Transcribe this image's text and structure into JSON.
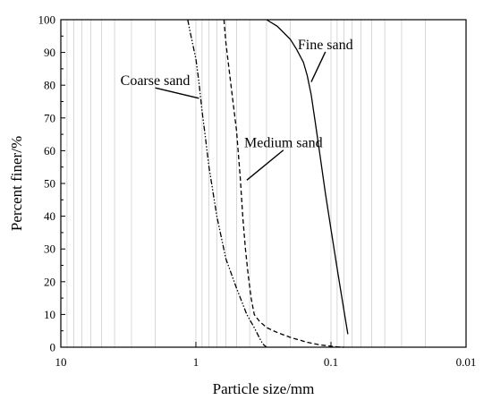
{
  "chart_data": {
    "type": "line",
    "xlabel": "Particle size/mm",
    "ylabel": "Percent finer/%",
    "x_scale": "log",
    "x_reversed": true,
    "xlim": [
      10,
      0.01
    ],
    "ylim": [
      0,
      100
    ],
    "x_ticks": [
      {
        "value": 10,
        "label": "10"
      },
      {
        "value": 1,
        "label": "1"
      },
      {
        "value": 0.1,
        "label": "0.1"
      },
      {
        "value": 0.01,
        "label": "0.01"
      }
    ],
    "y_ticks": [
      {
        "value": 0,
        "label": "0"
      },
      {
        "value": 10,
        "label": "10"
      },
      {
        "value": 20,
        "label": "20"
      },
      {
        "value": 30,
        "label": "30"
      },
      {
        "value": 40,
        "label": "40"
      },
      {
        "value": 50,
        "label": "50"
      },
      {
        "value": 60,
        "label": "60"
      },
      {
        "value": 70,
        "label": "70"
      },
      {
        "value": 80,
        "label": "80"
      },
      {
        "value": 90,
        "label": "90"
      },
      {
        "value": 100,
        "label": "100"
      }
    ],
    "grid": {
      "x_minor_log": true,
      "y": false
    },
    "series": [
      {
        "name": "Coarse sand",
        "line_style": "dash-dot-dot",
        "color": "#000000",
        "x": [
          1.15,
          1.1,
          1.0,
          0.95,
          0.9,
          0.85,
          0.8,
          0.7,
          0.6,
          0.5,
          0.42,
          0.37,
          0.34,
          0.32,
          0.3
        ],
        "y": [
          100,
          96,
          88,
          81,
          72,
          64,
          55,
          40,
          27,
          18,
          10,
          6,
          3,
          1,
          0
        ],
        "annotation": {
          "text": "Coarse sand",
          "point": {
            "x": 0.95,
            "y": 76
          },
          "text_at": {
            "x": 2.0,
            "y": 80
          }
        }
      },
      {
        "name": "Medium sand",
        "line_style": "dashed",
        "color": "#000000",
        "x": [
          0.62,
          0.6,
          0.55,
          0.5,
          0.47,
          0.45,
          0.43,
          0.41,
          0.39,
          0.37,
          0.34,
          0.3,
          0.25,
          0.2,
          0.15,
          0.12,
          0.1,
          0.09,
          0.08
        ],
        "y": [
          100,
          93,
          80,
          66,
          52,
          40,
          30,
          22,
          15,
          10,
          8,
          6,
          4.5,
          3,
          1.5,
          0.7,
          0.3,
          0.1,
          0
        ],
        "annotation": {
          "text": "Medium sand",
          "point": {
            "x": 0.42,
            "y": 51
          },
          "text_at": {
            "x": 0.225,
            "y": 61
          }
        }
      },
      {
        "name": "Fine sand",
        "line_style": "solid",
        "color": "#000000",
        "x": [
          0.3,
          0.25,
          0.2,
          0.18,
          0.16,
          0.15,
          0.14,
          0.13,
          0.12,
          0.11,
          0.1,
          0.09,
          0.08,
          0.075
        ],
        "y": [
          100,
          98,
          94,
          91,
          87,
          83,
          77,
          68,
          58,
          47,
          36,
          24,
          11,
          4
        ],
        "annotation": {
          "text": "Fine sand",
          "point": {
            "x": 0.14,
            "y": 81
          },
          "text_at": {
            "x": 0.11,
            "y": 91
          }
        }
      }
    ]
  }
}
